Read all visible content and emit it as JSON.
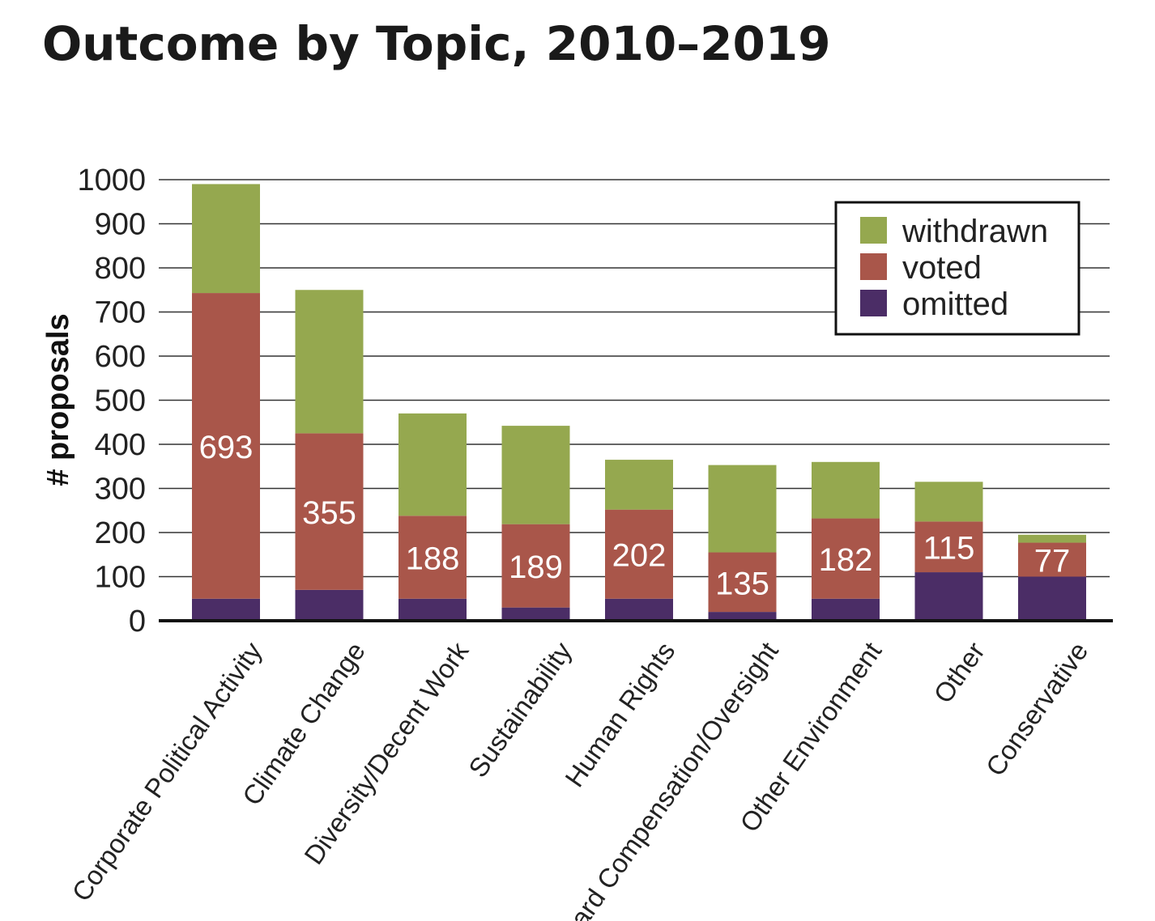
{
  "chart_data": {
    "type": "bar",
    "stacked": true,
    "title": "Outcome by Topic, 2010–2019",
    "xlabel": "",
    "ylabel": "# proposals",
    "ylim": [
      0,
      1000
    ],
    "yticks": [
      0,
      100,
      200,
      300,
      400,
      500,
      600,
      700,
      800,
      900,
      1000
    ],
    "grid": true,
    "legend_position": "top-right",
    "categories": [
      "Corporate Political Activity",
      "Climate Change",
      "Diversity/Decent Work",
      "Sustainability",
      "Human Rights",
      "Board Compensation/Oversight",
      "Other Environment",
      "Other",
      "Conservative"
    ],
    "series": [
      {
        "name": "omitted",
        "color": "#4b2d66",
        "values": [
          50,
          70,
          50,
          30,
          50,
          20,
          50,
          110,
          100
        ]
      },
      {
        "name": "voted",
        "color": "#a9564a",
        "values": [
          693,
          355,
          188,
          189,
          202,
          135,
          182,
          115,
          77
        ]
      },
      {
        "name": "withdrawn",
        "color": "#95a84f",
        "values": [
          247,
          325,
          232,
          223,
          113,
          198,
          128,
          90,
          18
        ]
      }
    ],
    "data_labels_series": "voted",
    "legend_order": [
      "withdrawn",
      "voted",
      "omitted"
    ]
  }
}
